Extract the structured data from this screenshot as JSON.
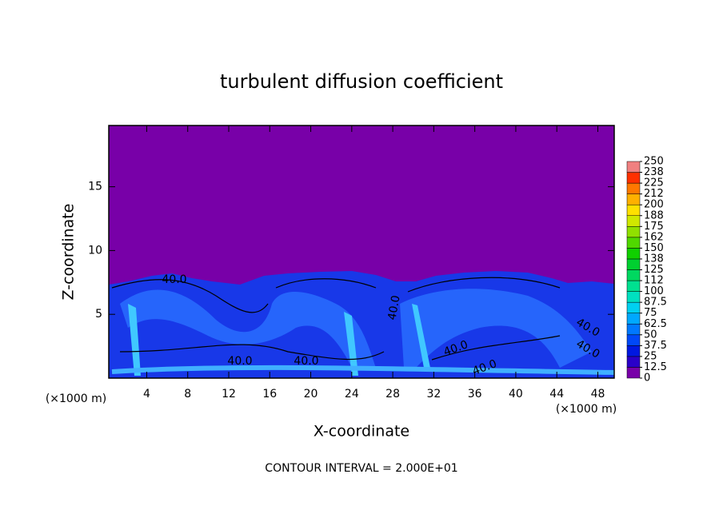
{
  "chart_data": {
    "type": "contour",
    "title": "turbulent diffusion coefficient",
    "xlabel": "X-coordinate",
    "ylabel": "Z-coordinate",
    "x_unit": "(×1000 m)",
    "footnote": "CONTOUR INTERVAL = 2.000E+01",
    "xlim": [
      0.3,
      49.6
    ],
    "ylim": [
      0,
      19.8
    ],
    "xticks": [
      4,
      8,
      12,
      16,
      20,
      24,
      28,
      32,
      36,
      40,
      44,
      48
    ],
    "yticks": [
      5,
      10,
      15
    ],
    "contour_labels": [
      "40.0",
      "40.0",
      "40.0",
      "40.0",
      "40.0",
      "40.0",
      "40.0",
      "40.0"
    ],
    "colorbar": {
      "lim": [
        0,
        250
      ],
      "ticks": [
        0,
        12.5,
        25,
        37.5,
        50,
        62.5,
        75,
        87.5,
        100,
        {
          "value": 112.5,
          "label": "112"
        },
        125,
        {
          "value": 137.5,
          "label": "138"
        },
        150,
        {
          "value": 162.5,
          "label": "162"
        },
        175,
        {
          "value": 187.5,
          "label": "188"
        },
        200,
        {
          "value": 212.5,
          "label": "212"
        },
        225,
        {
          "value": 237.5,
          "label": "238"
        },
        250
      ],
      "colors": [
        "#7800a8",
        "#2a00c8",
        "#0018e0",
        "#0048f8",
        "#0078ff",
        "#00a8ff",
        "#00d0f0",
        "#00e0c0",
        "#00e090",
        "#00d860",
        "#00d030",
        "#10d000",
        "#50d800",
        "#90e000",
        "#d0e800",
        "#ffe000",
        "#ffb000",
        "#ff7800",
        "#ff3000",
        "#f08080"
      ]
    }
  }
}
